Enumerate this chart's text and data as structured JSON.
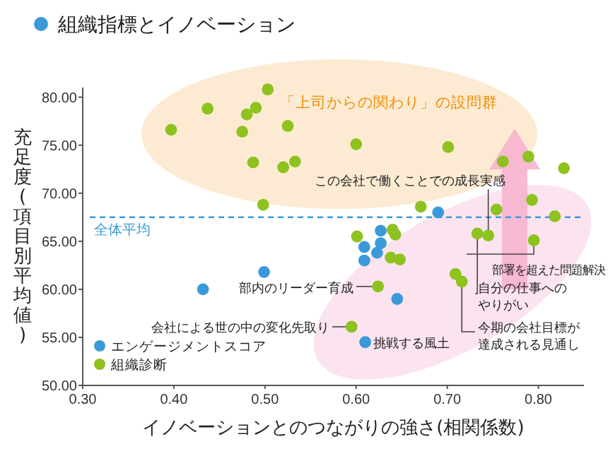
{
  "chart_data": {
    "type": "scatter",
    "title": "組織指標とイノベーション",
    "xlabel": "イノベーションとのつながりの強さ(相関係数)",
    "ylabel": "充足度(項目別平均値)",
    "xlim": [
      0.3,
      0.85
    ],
    "ylim": [
      50,
      81
    ],
    "xticks": [
      {
        "value": 0.3,
        "label": "0.30"
      },
      {
        "value": 0.4,
        "label": "0.40"
      },
      {
        "value": 0.5,
        "label": "0.50"
      },
      {
        "value": 0.6,
        "label": "0.60"
      },
      {
        "value": 0.7,
        "label": "0.70"
      },
      {
        "value": 0.8,
        "label": "0.80"
      }
    ],
    "yticks": [
      {
        "value": 50,
        "label": "50.00"
      },
      {
        "value": 55,
        "label": "55.00"
      },
      {
        "value": 60,
        "label": "60.00"
      },
      {
        "value": 65,
        "label": "65.00"
      },
      {
        "value": 70,
        "label": "70.00"
      },
      {
        "value": 75,
        "label": "75.00"
      },
      {
        "value": 80,
        "label": "80.00"
      }
    ],
    "grid": false,
    "legend": "bottom left",
    "marker": "circle",
    "series": [
      {
        "name": "エンゲージメントスコア",
        "color": "#3a9ad9",
        "x": [
          0.69,
          0.432,
          0.499,
          0.627,
          0.627,
          0.609,
          0.623,
          0.609,
          0.645,
          0.61
        ],
        "values": [
          68.0,
          60.0,
          61.8,
          66.1,
          64.8,
          64.4,
          63.8,
          63.0,
          59.0,
          54.5
        ]
      },
      {
        "name": "組織診断",
        "color": "#8dc21f",
        "x": [
          0.397,
          0.437,
          0.503,
          0.49,
          0.48,
          0.475,
          0.525,
          0.487,
          0.52,
          0.533,
          0.498,
          0.6,
          0.701,
          0.761,
          0.789,
          0.828,
          0.793,
          0.754,
          0.818,
          0.671,
          0.733,
          0.745,
          0.601,
          0.64,
          0.643,
          0.638,
          0.648,
          0.795,
          0.709,
          0.716,
          0.624,
          0.595
        ],
        "values": [
          76.6,
          78.8,
          80.8,
          78.9,
          78.2,
          76.4,
          77.0,
          73.2,
          72.7,
          73.3,
          68.8,
          75.1,
          74.8,
          73.3,
          73.8,
          72.6,
          69.3,
          68.3,
          67.6,
          68.6,
          65.8,
          65.6,
          65.5,
          66.2,
          65.7,
          63.3,
          63.1,
          65.1,
          61.6,
          60.8,
          60.3,
          56.1
        ]
      }
    ],
    "ref_lines": [
      {
        "axis": "y",
        "value": 67.5,
        "label": "全体平均",
        "color": "#3a9ad9",
        "line_style": "dashed"
      }
    ],
    "annotations": [
      "「上司からの関わり」の設問群",
      {
        "text": "この会社で働くことでの成長実感",
        "x": 0.745,
        "y": 65.6
      },
      {
        "text": "部署を超えた問題解決",
        "x": 0.795,
        "y": 65.1
      },
      {
        "text": "自分の仕事へのやりがい",
        "x": 0.733,
        "y": 65.8
      },
      {
        "text": "今期の会社目標が達成される見通し",
        "x": 0.716,
        "y": 60.8
      },
      {
        "text": "部内のリーダー育成",
        "x": 0.624,
        "y": 60.3
      },
      {
        "text": "会社による世の中の変化先取り",
        "x": 0.595,
        "y": 56.1
      },
      {
        "text": "挑戦する風土",
        "x": 0.61,
        "y": 54.5
      }
    ]
  }
}
